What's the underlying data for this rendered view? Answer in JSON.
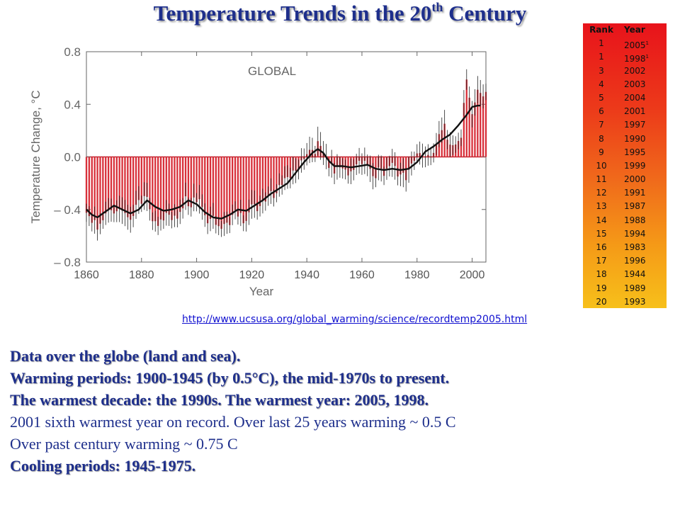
{
  "slide": {
    "title_main": "Temperature Trends in the 20",
    "title_sup": "th",
    "title_end": " Century"
  },
  "chart_data": {
    "type": "bar",
    "panel_label": "GLOBAL",
    "xlabel": "Year",
    "ylabel": "Temperature Change, °C",
    "xlim": [
      1860,
      2005
    ],
    "ylim": [
      -0.8,
      0.8
    ],
    "x_ticks": [
      1860,
      1880,
      1900,
      1920,
      1940,
      1960,
      1980,
      2000
    ],
    "y_ticks": [
      {
        "value": 0.8,
        "label": "0.8"
      },
      {
        "value": 0.4,
        "label": "0.4"
      },
      {
        "value": 0.0,
        "label": "0.0"
      },
      {
        "value": -0.4,
        "label": "– 0.4"
      },
      {
        "value": -0.8,
        "label": "– 0.8"
      }
    ],
    "bar_color": "#d8303a",
    "smooth_color": "#111111",
    "anchors": [
      [
        1860,
        -0.4
      ],
      [
        1862,
        -0.47
      ],
      [
        1864,
        -0.55
      ],
      [
        1866,
        -0.45
      ],
      [
        1868,
        -0.42
      ],
      [
        1870,
        -0.4
      ],
      [
        1872,
        -0.42
      ],
      [
        1874,
        -0.45
      ],
      [
        1876,
        -0.5
      ],
      [
        1878,
        -0.4
      ],
      [
        1880,
        -0.32
      ],
      [
        1882,
        -0.34
      ],
      [
        1884,
        -0.46
      ],
      [
        1886,
        -0.5
      ],
      [
        1888,
        -0.45
      ],
      [
        1890,
        -0.44
      ],
      [
        1892,
        -0.45
      ],
      [
        1894,
        -0.43
      ],
      [
        1896,
        -0.33
      ],
      [
        1898,
        -0.36
      ],
      [
        1900,
        -0.32
      ],
      [
        1902,
        -0.4
      ],
      [
        1904,
        -0.5
      ],
      [
        1906,
        -0.47
      ],
      [
        1908,
        -0.5
      ],
      [
        1910,
        -0.52
      ],
      [
        1912,
        -0.48
      ],
      [
        1914,
        -0.38
      ],
      [
        1916,
        -0.45
      ],
      [
        1918,
        -0.48
      ],
      [
        1920,
        -0.4
      ],
      [
        1922,
        -0.38
      ],
      [
        1924,
        -0.35
      ],
      [
        1926,
        -0.28
      ],
      [
        1928,
        -0.28
      ],
      [
        1930,
        -0.22
      ],
      [
        1932,
        -0.17
      ],
      [
        1934,
        -0.15
      ],
      [
        1936,
        -0.12
      ],
      [
        1938,
        -0.04
      ],
      [
        1940,
        0.02
      ],
      [
        1942,
        0.04
      ],
      [
        1944,
        0.08
      ],
      [
        1946,
        0.02
      ],
      [
        1948,
        -0.05
      ],
      [
        1950,
        -0.12
      ],
      [
        1952,
        -0.07
      ],
      [
        1954,
        -0.08
      ],
      [
        1956,
        -0.13
      ],
      [
        1958,
        -0.05
      ],
      [
        1960,
        -0.05
      ],
      [
        1962,
        -0.06
      ],
      [
        1964,
        -0.17
      ],
      [
        1966,
        -0.1
      ],
      [
        1968,
        -0.12
      ],
      [
        1970,
        -0.06
      ],
      [
        1972,
        -0.1
      ],
      [
        1974,
        -0.14
      ],
      [
        1976,
        -0.18
      ],
      [
        1978,
        -0.06
      ],
      [
        1980,
        0.05
      ],
      [
        1982,
        0.0
      ],
      [
        1984,
        0.02
      ],
      [
        1986,
        0.05
      ],
      [
        1988,
        0.15
      ],
      [
        1990,
        0.22
      ],
      [
        1992,
        0.08
      ],
      [
        1994,
        0.13
      ],
      [
        1996,
        0.18
      ],
      [
        1998,
        0.6
      ],
      [
        2000,
        0.3
      ],
      [
        2002,
        0.48
      ],
      [
        2004,
        0.45
      ],
      [
        2005,
        0.53
      ]
    ],
    "smoothed": [
      [
        1860,
        -0.4
      ],
      [
        1862,
        -0.44
      ],
      [
        1864,
        -0.46
      ],
      [
        1866,
        -0.43
      ],
      [
        1868,
        -0.4
      ],
      [
        1870,
        -0.37
      ],
      [
        1873,
        -0.4
      ],
      [
        1876,
        -0.43
      ],
      [
        1879,
        -0.4
      ],
      [
        1882,
        -0.33
      ],
      [
        1885,
        -0.38
      ],
      [
        1888,
        -0.41
      ],
      [
        1891,
        -0.4
      ],
      [
        1894,
        -0.38
      ],
      [
        1897,
        -0.33
      ],
      [
        1900,
        -0.36
      ],
      [
        1903,
        -0.42
      ],
      [
        1906,
        -0.46
      ],
      [
        1909,
        -0.47
      ],
      [
        1912,
        -0.44
      ],
      [
        1915,
        -0.4
      ],
      [
        1918,
        -0.41
      ],
      [
        1921,
        -0.37
      ],
      [
        1924,
        -0.33
      ],
      [
        1927,
        -0.28
      ],
      [
        1930,
        -0.24
      ],
      [
        1933,
        -0.2
      ],
      [
        1936,
        -0.12
      ],
      [
        1939,
        -0.04
      ],
      [
        1942,
        0.03
      ],
      [
        1944,
        0.06
      ],
      [
        1946,
        0.03
      ],
      [
        1948,
        -0.03
      ],
      [
        1950,
        -0.07
      ],
      [
        1953,
        -0.07
      ],
      [
        1956,
        -0.08
      ],
      [
        1959,
        -0.07
      ],
      [
        1962,
        -0.06
      ],
      [
        1965,
        -0.09
      ],
      [
        1968,
        -0.1
      ],
      [
        1971,
        -0.09
      ],
      [
        1974,
        -0.1
      ],
      [
        1977,
        -0.09
      ],
      [
        1980,
        -0.04
      ],
      [
        1983,
        0.04
      ],
      [
        1986,
        0.08
      ],
      [
        1989,
        0.13
      ],
      [
        1992,
        0.17
      ],
      [
        1995,
        0.24
      ],
      [
        1998,
        0.32
      ],
      [
        2000,
        0.38
      ],
      [
        2002,
        0.39
      ],
      [
        2003,
        0.39
      ]
    ]
  },
  "rank_table": {
    "headers": [
      "Rank",
      "Year"
    ],
    "rows": [
      {
        "rank": "1",
        "year": "2005",
        "sup": "1"
      },
      {
        "rank": "1",
        "year": "1998",
        "sup": "1"
      },
      {
        "rank": "3",
        "year": "2002"
      },
      {
        "rank": "4",
        "year": "2003"
      },
      {
        "rank": "5",
        "year": "2004"
      },
      {
        "rank": "6",
        "year": "2001"
      },
      {
        "rank": "7",
        "year": "1997"
      },
      {
        "rank": "8",
        "year": "1990"
      },
      {
        "rank": "9",
        "year": "1995"
      },
      {
        "rank": "10",
        "year": "1999"
      },
      {
        "rank": "11",
        "year": "2000"
      },
      {
        "rank": "12",
        "year": "1991"
      },
      {
        "rank": "13",
        "year": "1987"
      },
      {
        "rank": "14",
        "year": "1988"
      },
      {
        "rank": "15",
        "year": "1994"
      },
      {
        "rank": "16",
        "year": "1983"
      },
      {
        "rank": "17",
        "year": "1996"
      },
      {
        "rank": "18",
        "year": "1944"
      },
      {
        "rank": "19",
        "year": "1989"
      },
      {
        "rank": "20",
        "year": "1993"
      }
    ]
  },
  "source_link": "http://www.ucsusa.org/global_warming/science/recordtemp2005.html",
  "notes": [
    {
      "text": "Data over the globe (land and sea).",
      "style": "bold"
    },
    {
      "text": "Warming periods: 1900-1945 (by 0.5°C), the mid-1970s to present.",
      "style": "bold"
    },
    {
      "text": "The warmest decade: the 1990s. The warmest year: 2005, 1998.",
      "style": "bold"
    },
    {
      "text": "2001 sixth warmest year on record. Over last 25 years warming ~ 0.5 C",
      "style": "plain"
    },
    {
      "text": "Over past century warming ~ 0.75 C",
      "style": "plain"
    },
    {
      "text": "Cooling periods: 1945-1975.",
      "style": "bold"
    }
  ]
}
